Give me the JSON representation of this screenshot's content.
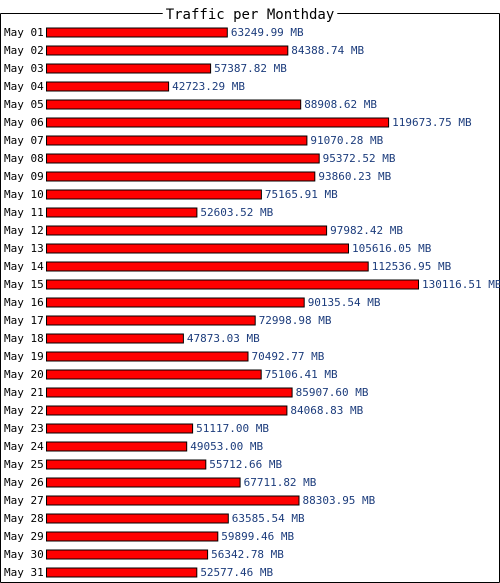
{
  "chart_data": {
    "type": "bar",
    "orientation": "horizontal",
    "title": "Traffic per Monthday",
    "categories": [
      "May 01",
      "May 02",
      "May 03",
      "May 04",
      "May 05",
      "May 06",
      "May 07",
      "May 08",
      "May 09",
      "May 10",
      "May 11",
      "May 12",
      "May 13",
      "May 14",
      "May 15",
      "May 16",
      "May 17",
      "May 18",
      "May 19",
      "May 20",
      "May 21",
      "May 22",
      "May 23",
      "May 24",
      "May 25",
      "May 26",
      "May 27",
      "May 28",
      "May 29",
      "May 30",
      "May 31"
    ],
    "values": [
      63249.99,
      84388.74,
      57387.82,
      42723.29,
      88908.62,
      119673.75,
      91070.28,
      95372.52,
      93860.23,
      75165.91,
      52603.52,
      97982.42,
      105616.05,
      112536.95,
      130116.51,
      90135.54,
      72998.98,
      47873.03,
      70492.77,
      75106.41,
      85907.6,
      84068.83,
      51117.0,
      49053.0,
      55712.66,
      67711.82,
      88303.95,
      63585.54,
      59899.46,
      56342.78,
      52577.46
    ],
    "value_labels": [
      "63249.99 MB",
      "84388.74 MB",
      "57387.82 MB",
      "42723.29 MB",
      "88908.62 MB",
      "119673.75 MB",
      "91070.28 MB",
      "95372.52 MB",
      "93860.23 MB",
      "75165.91 MB",
      "52603.52 MB",
      "97982.42 MB",
      "105616.05 MB",
      "112536.95 MB",
      "130116.51 MB",
      "90135.54 MB",
      "72998.98 MB",
      "47873.03 MB",
      "70492.77 MB",
      "75106.41 MB",
      "85907.60 MB",
      "84068.83 MB",
      "51117.00 MB",
      "49053.00 MB",
      "55712.66 MB",
      "67711.82 MB",
      "88303.95 MB",
      "63585.54 MB",
      "59899.46 MB",
      "56342.78 MB",
      "52577.46 MB"
    ],
    "unit": "MB",
    "grid": false,
    "legend": "none",
    "colors": {
      "bar_fill": "#ff0000",
      "bar_border": "#000000",
      "value_label": "#1c3c7c",
      "category_label": "#000000",
      "frame": "#000000",
      "title": "#000000"
    }
  }
}
